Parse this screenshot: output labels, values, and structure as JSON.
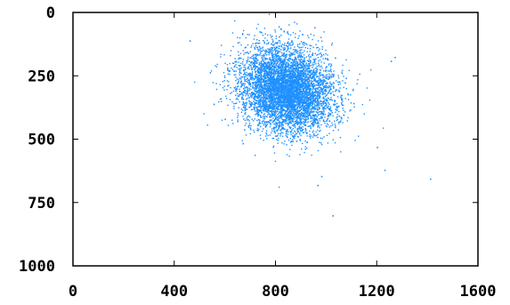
{
  "chart_data": {
    "type": "scatter",
    "title": "",
    "xlabel": "",
    "ylabel": "",
    "xlim": [
      0,
      1600
    ],
    "ylim": [
      0,
      1000
    ],
    "y_inverted": true,
    "grid": false,
    "x_ticks": [
      "0",
      "400",
      "800",
      "1200",
      "1600"
    ],
    "y_ticks": [
      "0",
      "250",
      "500",
      "750",
      "1000"
    ],
    "series": [
      {
        "color": "#1e90ff",
        "marker": "pixel",
        "approx_point_count": 6000,
        "distribution": {
          "center": [
            840,
            300
          ],
          "spread": [
            95,
            80
          ],
          "rotation_deg": 32,
          "note_points": "dense elliptical cloud"
        },
        "outliers": [
          [
            460,
            110
          ],
          [
            1270,
            175
          ],
          [
            1255,
            190
          ],
          [
            1410,
            655
          ],
          [
            1025,
            800
          ],
          [
            965,
            680
          ],
          [
            1230,
            620
          ],
          [
            670,
            515
          ],
          [
            980,
            645
          ],
          [
            1200,
            530
          ],
          [
            540,
            235
          ],
          [
            555,
            360
          ]
        ]
      }
    ]
  }
}
